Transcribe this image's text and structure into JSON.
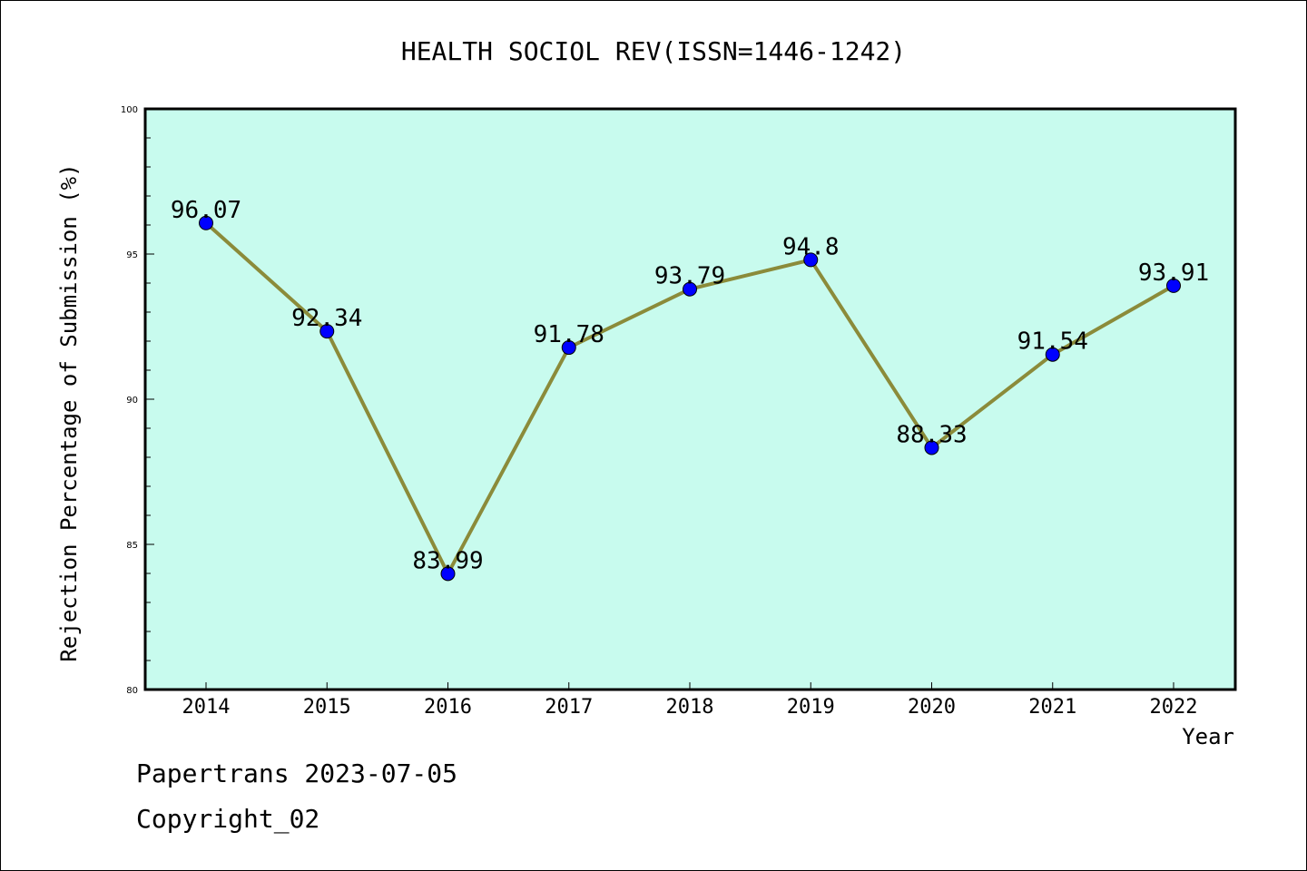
{
  "chart_data": {
    "type": "line",
    "title": "HEALTH SOCIOL REV(ISSN=1446-1242)",
    "xlabel": "Year",
    "ylabel": "Rejection Percentage of Submission (%)",
    "categories": [
      "2014",
      "2015",
      "2016",
      "2017",
      "2018",
      "2019",
      "2020",
      "2021",
      "2022"
    ],
    "series": [
      {
        "values": [
          96.07,
          92.34,
          83.99,
          91.78,
          93.79,
          94.8,
          88.33,
          91.54,
          93.91
        ],
        "data_labels": [
          "96.07",
          "92.34",
          "83.99",
          "91.78",
          "93.79",
          "94.8",
          "88.33",
          "91.54",
          "93.91"
        ]
      }
    ],
    "ylim": [
      80,
      100
    ],
    "yticks": [
      "80",
      "85",
      "90",
      "95",
      "100"
    ],
    "grid": false,
    "colors": {
      "plot_background": "#c8fbee",
      "line": "#8b8b3a",
      "marker": "#0000ff"
    }
  },
  "footer": {
    "line1": "Papertrans 2023-07-05",
    "line2": "Copyright_02"
  }
}
